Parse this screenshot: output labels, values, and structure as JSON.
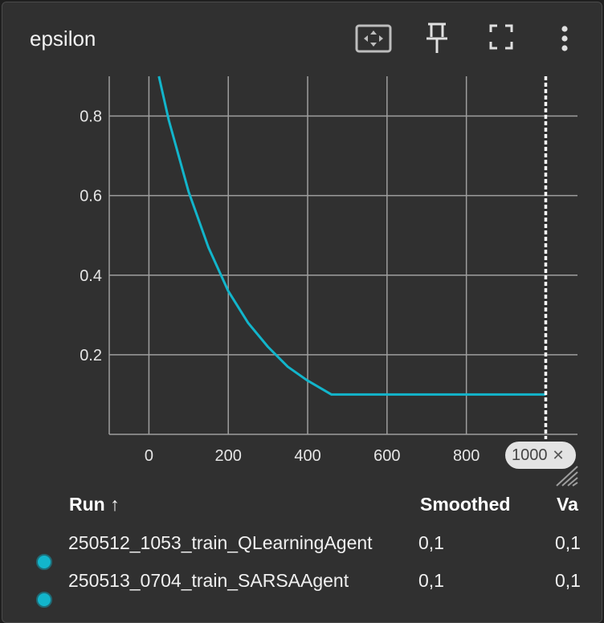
{
  "card": {
    "title": "epsilon",
    "toolbar": [
      "fit-domain-icon",
      "pin-icon",
      "fullscreen-icon",
      "more-vert-icon"
    ]
  },
  "chart_data": {
    "type": "line",
    "title": "epsilon",
    "xlabel": "",
    "ylabel": "",
    "xlim": [
      -100,
      1080
    ],
    "ylim": [
      0,
      0.9
    ],
    "x_ticks": [
      "0",
      "200",
      "400",
      "600",
      "800"
    ],
    "y_ticks": [
      "0.2",
      "0.4",
      "0.6",
      "0.8"
    ],
    "grid": true,
    "series": [
      {
        "name": "250512_1053_train_QLearningAgent",
        "color": "#12b5cb",
        "x": [
          25,
          50,
          100,
          150,
          200,
          250,
          300,
          350,
          400,
          460,
          600,
          800,
          1000
        ],
        "y": [
          0.9,
          0.79,
          0.61,
          0.47,
          0.36,
          0.28,
          0.22,
          0.17,
          0.135,
          0.1,
          0.1,
          0.1,
          0.1
        ]
      }
    ],
    "step_marker": {
      "step": 1000,
      "label": "1000"
    }
  },
  "table": {
    "headers": {
      "run": "Run",
      "sort": "↑",
      "smoothed": "Smoothed",
      "value": "Va"
    },
    "rows": [
      {
        "run": "250512_1053_train_QLearningAgent",
        "smoothed": "0,1",
        "value": "0,1",
        "color": "#12b5cb"
      },
      {
        "run": "250513_0704_train_SARSAAgent",
        "smoothed": "0,1",
        "value": "0,1",
        "color": "#12b5cb"
      }
    ]
  },
  "colors": {
    "background": "#303030",
    "grid": "#9e9e9e",
    "line": "#12b5cb",
    "text": "#f2f2f2"
  }
}
